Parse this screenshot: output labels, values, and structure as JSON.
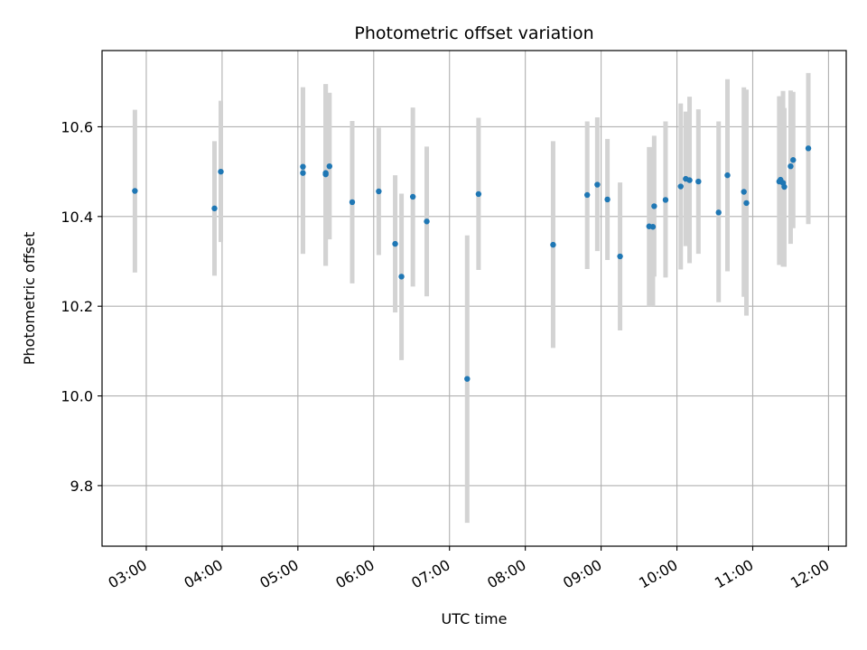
{
  "chart_data": {
    "type": "scatter",
    "title": "Photometric offset variation",
    "xlabel": "UTC time",
    "ylabel": "Photometric offset",
    "x_ticks": [
      "03:00",
      "04:00",
      "05:00",
      "06:00",
      "07:00",
      "08:00",
      "09:00",
      "10:00",
      "11:00",
      "12:00"
    ],
    "y_ticks": [
      "9.8",
      "10.0",
      "10.2",
      "10.4",
      "10.6"
    ],
    "xlim": [
      "02:25",
      "12:14"
    ],
    "ylim": [
      9.665,
      10.77
    ],
    "grid": true,
    "colors": {
      "point": "#1f77b4",
      "errorbar": "#d3d3d3",
      "grid": "#b0b0b0"
    },
    "points": [
      {
        "time": "02:51",
        "y": 10.457,
        "lo": 10.275,
        "hi": 10.638
      },
      {
        "time": "03:54",
        "y": 10.418,
        "lo": 10.268,
        "hi": 10.568
      },
      {
        "time": "03:59",
        "y": 10.5,
        "lo": 10.343,
        "hi": 10.658
      },
      {
        "time": "05:04",
        "y": 10.511,
        "lo": 10.317,
        "hi": 10.688
      },
      {
        "time": "05:04",
        "y": 10.497,
        "lo": 10.317,
        "hi": 10.688
      },
      {
        "time": "05:22",
        "y": 10.494,
        "lo": 10.29,
        "hi": 10.695
      },
      {
        "time": "05:22",
        "y": 10.497,
        "lo": 10.29,
        "hi": 10.695
      },
      {
        "time": "05:25",
        "y": 10.512,
        "lo": 10.349,
        "hi": 10.676
      },
      {
        "time": "05:43",
        "y": 10.432,
        "lo": 10.251,
        "hi": 10.613
      },
      {
        "time": "06:04",
        "y": 10.456,
        "lo": 10.314,
        "hi": 10.598
      },
      {
        "time": "06:17",
        "y": 10.339,
        "lo": 10.186,
        "hi": 10.492
      },
      {
        "time": "06:22",
        "y": 10.266,
        "lo": 10.08,
        "hi": 10.451
      },
      {
        "time": "06:31",
        "y": 10.444,
        "lo": 10.244,
        "hi": 10.643
      },
      {
        "time": "06:42",
        "y": 10.389,
        "lo": 10.222,
        "hi": 10.556
      },
      {
        "time": "07:14",
        "y": 10.038,
        "lo": 9.717,
        "hi": 10.358
      },
      {
        "time": "07:23",
        "y": 10.45,
        "lo": 10.281,
        "hi": 10.62
      },
      {
        "time": "08:22",
        "y": 10.337,
        "lo": 10.107,
        "hi": 10.568
      },
      {
        "time": "08:49",
        "y": 10.448,
        "lo": 10.283,
        "hi": 10.612
      },
      {
        "time": "08:57",
        "y": 10.471,
        "lo": 10.323,
        "hi": 10.621
      },
      {
        "time": "09:05",
        "y": 10.438,
        "lo": 10.303,
        "hi": 10.573
      },
      {
        "time": "09:15",
        "y": 10.311,
        "lo": 10.146,
        "hi": 10.476
      },
      {
        "time": "09:38",
        "y": 10.378,
        "lo": 10.2,
        "hi": 10.555
      },
      {
        "time": "09:41",
        "y": 10.377,
        "lo": 10.2,
        "hi": 10.555
      },
      {
        "time": "09:42",
        "y": 10.423,
        "lo": 10.266,
        "hi": 10.58
      },
      {
        "time": "09:51",
        "y": 10.437,
        "lo": 10.264,
        "hi": 10.612
      },
      {
        "time": "10:03",
        "y": 10.467,
        "lo": 10.282,
        "hi": 10.652
      },
      {
        "time": "10:07",
        "y": 10.484,
        "lo": 10.334,
        "hi": 10.634
      },
      {
        "time": "10:10",
        "y": 10.481,
        "lo": 10.296,
        "hi": 10.667
      },
      {
        "time": "10:17",
        "y": 10.478,
        "lo": 10.317,
        "hi": 10.639
      },
      {
        "time": "10:33",
        "y": 10.409,
        "lo": 10.209,
        "hi": 10.612
      },
      {
        "time": "10:40",
        "y": 10.492,
        "lo": 10.278,
        "hi": 10.706
      },
      {
        "time": "10:53",
        "y": 10.455,
        "lo": 10.221,
        "hi": 10.688
      },
      {
        "time": "10:55",
        "y": 10.43,
        "lo": 10.179,
        "hi": 10.683
      },
      {
        "time": "11:21",
        "y": 10.478,
        "lo": 10.292,
        "hi": 10.668
      },
      {
        "time": "11:22",
        "y": 10.482,
        "lo": 10.292,
        "hi": 10.668
      },
      {
        "time": "11:24",
        "y": 10.475,
        "lo": 10.288,
        "hi": 10.68
      },
      {
        "time": "11:25",
        "y": 10.466,
        "lo": 10.288,
        "hi": 10.642
      },
      {
        "time": "11:30",
        "y": 10.512,
        "lo": 10.339,
        "hi": 10.681
      },
      {
        "time": "11:32",
        "y": 10.526,
        "lo": 10.374,
        "hi": 10.678
      },
      {
        "time": "11:44",
        "y": 10.552,
        "lo": 10.383,
        "hi": 10.72
      }
    ]
  }
}
